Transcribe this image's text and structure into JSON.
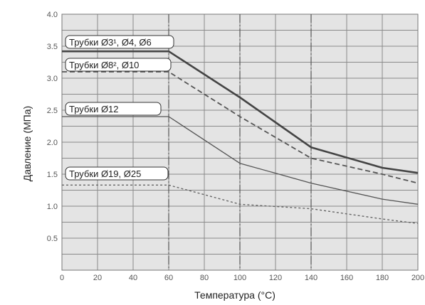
{
  "chart_data": {
    "type": "line",
    "title": "",
    "xlabel": "Температура (°C)",
    "ylabel": "Давление (МПа)",
    "xlim": [
      0,
      200
    ],
    "ylim": [
      0,
      4.0
    ],
    "x_ticks": [
      "0",
      "20",
      "40",
      "60",
      "80",
      "100",
      "120",
      "140",
      "160",
      "180",
      "200"
    ],
    "y_ticks": [
      "0.5",
      "1.0",
      "1.5",
      "2.0",
      "2.5",
      "3.0",
      "3.5",
      "4.0"
    ],
    "grid": true,
    "dash_dot_x": [
      60,
      100,
      140
    ],
    "series": [
      {
        "name": "Трубки Ø3¹, Ø4, Ø6",
        "style": "solid-thick",
        "color": "#444444",
        "points": [
          [
            0,
            3.42
          ],
          [
            60,
            3.42
          ],
          [
            100,
            2.7
          ],
          [
            140,
            1.92
          ],
          [
            180,
            1.6
          ],
          [
            200,
            1.52
          ]
        ]
      },
      {
        "name": "Трубки Ø8², Ø10",
        "style": "dashed",
        "color": "#555555",
        "points": [
          [
            0,
            3.1
          ],
          [
            60,
            3.1
          ],
          [
            100,
            2.4
          ],
          [
            140,
            1.75
          ],
          [
            180,
            1.5
          ],
          [
            200,
            1.36
          ]
        ]
      },
      {
        "name": "Трубки Ø12",
        "style": "solid-thin",
        "color": "#555555",
        "points": [
          [
            0,
            2.4
          ],
          [
            60,
            2.4
          ],
          [
            100,
            1.67
          ],
          [
            140,
            1.36
          ],
          [
            180,
            1.11
          ],
          [
            200,
            1.03
          ]
        ]
      },
      {
        "name": "Трубки Ø19, Ø25",
        "style": "dotted",
        "color": "#666666",
        "points": [
          [
            0,
            1.33
          ],
          [
            60,
            1.33
          ],
          [
            100,
            1.03
          ],
          [
            140,
            0.96
          ],
          [
            180,
            0.8
          ],
          [
            200,
            0.73
          ]
        ]
      }
    ]
  }
}
